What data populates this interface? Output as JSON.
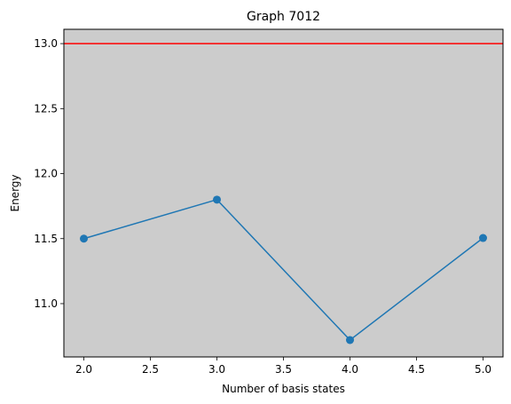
{
  "chart_data": {
    "type": "line",
    "title": "Graph 7012",
    "xlabel": "Number of basis states",
    "ylabel": "Energy",
    "xlim": [
      1.85,
      5.15
    ],
    "ylim": [
      10.59,
      13.11
    ],
    "xticks": [
      "2.0",
      "2.5",
      "3.0",
      "3.5",
      "4.0",
      "4.5",
      "5.0"
    ],
    "yticks": [
      "11.0",
      "11.5",
      "12.0",
      "12.5",
      "13.0"
    ],
    "grid": false,
    "legend": "none",
    "background_color": "#cccccc",
    "series": [
      {
        "x": [
          2,
          3,
          4,
          5
        ],
        "y": [
          11.5,
          11.8,
          10.72,
          11.505
        ],
        "color": "#1f77b4",
        "marker": "circle"
      }
    ],
    "reference_lines": [
      {
        "orientation": "horizontal",
        "y": 13.0,
        "color": "#ff0000"
      }
    ]
  }
}
